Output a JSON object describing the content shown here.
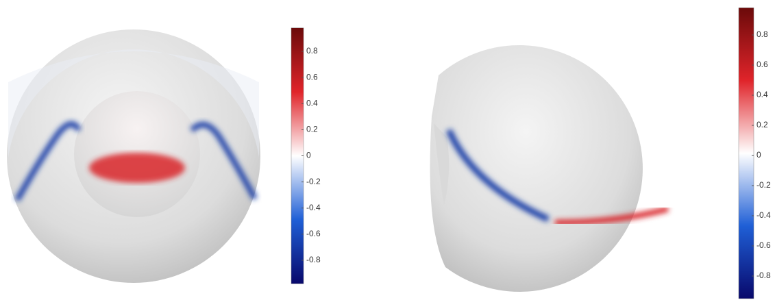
{
  "chart_data": [
    {
      "type": "colorbar",
      "clim": [
        -0.98,
        0.98
      ],
      "cticks": [
        -0.8,
        -0.6,
        -0.4,
        -0.2,
        0,
        0.2,
        0.4,
        0.6,
        0.8
      ],
      "colormap": [
        "#08086b",
        "#1f5fd6",
        "#ffffff",
        "#e0242a",
        "#6b0a0a"
      ]
    },
    {
      "type": "colorbar",
      "clim": [
        -0.95,
        0.98
      ],
      "cticks": [
        -0.8,
        -0.6,
        -0.4,
        -0.2,
        0,
        0.2,
        0.4,
        0.6,
        0.8
      ],
      "colormap": [
        "#08086b",
        "#1f5fd6",
        "#ffffff",
        "#e0242a",
        "#6b0a0a"
      ]
    }
  ]
}
